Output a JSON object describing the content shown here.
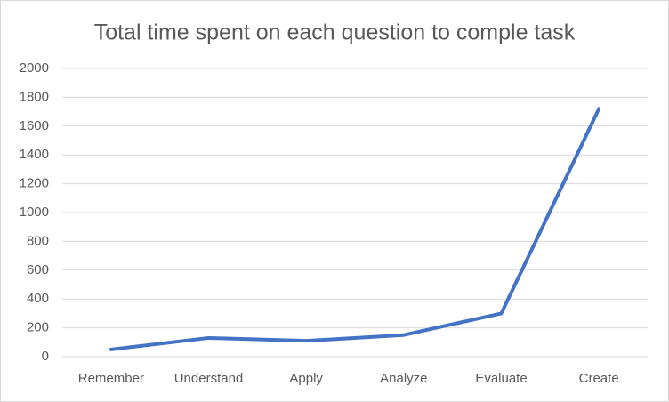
{
  "chart_data": {
    "type": "line",
    "title": "Total time spent on each question to comple task",
    "categories": [
      "Remember",
      "Understand",
      "Apply",
      "Analyze",
      "Evaluate",
      "Create"
    ],
    "values": [
      50,
      130,
      110,
      150,
      300,
      1720
    ],
    "color": "#4472c4",
    "ylim": [
      0,
      2000
    ],
    "yticks": [
      0,
      200,
      400,
      600,
      800,
      1000,
      1200,
      1400,
      1600,
      1800,
      2000
    ],
    "grid": true
  }
}
